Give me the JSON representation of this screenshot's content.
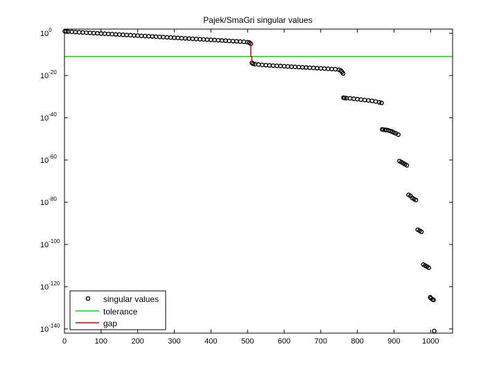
{
  "chart_data": {
    "type": "scatter",
    "title": "Pajek/SmaGri singular values",
    "xlabel": "",
    "ylabel": "",
    "xlim": [
      0,
      1060
    ],
    "ylim_log10": [
      -142,
      2
    ],
    "y_scale": "log",
    "grid": false,
    "legend_position": "bottom-left",
    "x_ticks": [
      0,
      100,
      200,
      300,
      400,
      500,
      600,
      700,
      800,
      900,
      1000
    ],
    "y_ticks": [
      {
        "base": "10",
        "exp": "0",
        "log10": 0
      },
      {
        "base": "10",
        "exp": "-20",
        "log10": -20
      },
      {
        "base": "10",
        "exp": "-40",
        "log10": -40
      },
      {
        "base": "10",
        "exp": "-60",
        "log10": -60
      },
      {
        "base": "10",
        "exp": "-80",
        "log10": -80
      },
      {
        "base": "10",
        "exp": "-100",
        "log10": -100
      },
      {
        "base": "10",
        "exp": "-120",
        "log10": -120
      },
      {
        "base": "10",
        "exp": "-140",
        "log10": -140
      }
    ],
    "series": [
      {
        "name": "singular values",
        "marker": "circle",
        "color": "#000000",
        "x": [
          1,
          5,
          10,
          20,
          30,
          40,
          50,
          60,
          70,
          80,
          90,
          100,
          110,
          120,
          130,
          140,
          150,
          160,
          170,
          180,
          190,
          200,
          210,
          220,
          230,
          240,
          250,
          260,
          270,
          280,
          290,
          300,
          310,
          320,
          330,
          340,
          350,
          360,
          370,
          380,
          390,
          400,
          410,
          420,
          430,
          440,
          450,
          460,
          470,
          480,
          490,
          500,
          505,
          509,
          512,
          515,
          520,
          530,
          540,
          550,
          560,
          570,
          580,
          590,
          600,
          610,
          620,
          630,
          640,
          650,
          660,
          670,
          680,
          690,
          700,
          710,
          720,
          730,
          740,
          750,
          755,
          758,
          761,
          762,
          765,
          770,
          780,
          790,
          800,
          810,
          820,
          830,
          840,
          850,
          860,
          866,
          868,
          870,
          875,
          880,
          885,
          890,
          895,
          900,
          905,
          912,
          915,
          920,
          925,
          930,
          935,
          940,
          945,
          950,
          955,
          960,
          965,
          970,
          975,
          980,
          985,
          990,
          995,
          999,
          1001,
          1005,
          1008,
          1010
        ],
        "log10_y": [
          1.0,
          0.9,
          0.8,
          0.7,
          0.6,
          0.5,
          0.4,
          0.3,
          0.2,
          0.1,
          0.0,
          -0.1,
          -0.2,
          -0.3,
          -0.4,
          -0.5,
          -0.6,
          -0.7,
          -0.8,
          -0.9,
          -1.0,
          -1.1,
          -1.2,
          -1.3,
          -1.4,
          -1.5,
          -1.6,
          -1.7,
          -1.8,
          -1.9,
          -2.0,
          -2.1,
          -2.2,
          -2.3,
          -2.4,
          -2.5,
          -2.6,
          -2.7,
          -2.8,
          -2.9,
          -3.0,
          -3.1,
          -3.2,
          -3.3,
          -3.4,
          -3.5,
          -3.6,
          -3.7,
          -3.8,
          -3.9,
          -4.0,
          -4.2,
          -4.4,
          -5.0,
          -14.0,
          -14.4,
          -14.6,
          -14.8,
          -15.0,
          -15.1,
          -15.2,
          -15.3,
          -15.4,
          -15.5,
          -15.6,
          -15.7,
          -15.8,
          -15.9,
          -16.0,
          -16.1,
          -16.2,
          -16.3,
          -16.4,
          -16.5,
          -16.6,
          -16.7,
          -16.8,
          -16.9,
          -17.0,
          -17.3,
          -17.7,
          -18.3,
          -19.0,
          -30.5,
          -30.6,
          -30.7,
          -30.8,
          -31.0,
          -31.2,
          -31.4,
          -31.6,
          -31.8,
          -32.0,
          -32.3,
          -32.7,
          -33.0,
          -45.5,
          -45.6,
          -45.7,
          -45.8,
          -46.0,
          -46.3,
          -46.6,
          -47.0,
          -47.4,
          -48.0,
          -60.5,
          -61.0,
          -61.5,
          -62.0,
          -62.5,
          -76.5,
          -77.0,
          -78.0,
          -78.5,
          -79.0,
          -93.0,
          -93.5,
          -94.0,
          -109.5,
          -110.0,
          -110.5,
          -111.0,
          -125.0,
          -125.5,
          -126.0,
          -126.3,
          -141.0
        ]
      },
      {
        "name": "tolerance",
        "style": "line",
        "color": "#00e000",
        "log10_y": -11
      },
      {
        "name": "gap",
        "style": "line",
        "color": "#e00000",
        "x": [
          509,
          509,
          512,
          512
        ],
        "log10_y": [
          -4.2,
          -11,
          -11,
          -14
        ]
      }
    ]
  }
}
